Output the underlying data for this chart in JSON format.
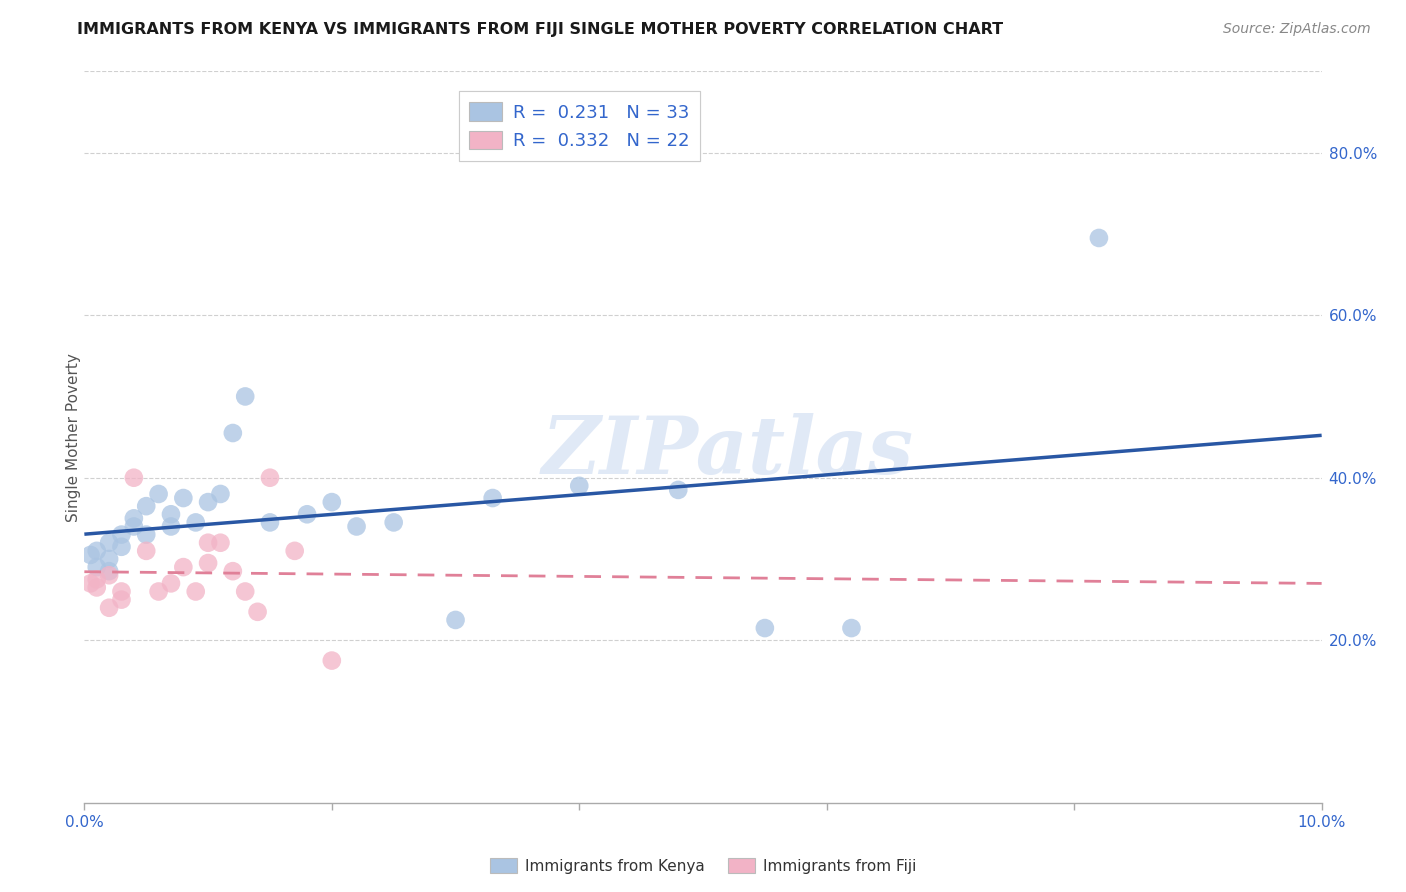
{
  "title": "IMMIGRANTS FROM KENYA VS IMMIGRANTS FROM FIJI SINGLE MOTHER POVERTY CORRELATION CHART",
  "source": "Source: ZipAtlas.com",
  "ylabel": "Single Mother Poverty",
  "xlim": [
    0.0,
    0.1
  ],
  "ylim": [
    0.0,
    0.9
  ],
  "xtick_positions": [
    0.0,
    0.02,
    0.04,
    0.06,
    0.08,
    0.1
  ],
  "xtick_labels": [
    "0.0%",
    "",
    "",
    "",
    "",
    "10.0%"
  ],
  "ytick_positions": [
    0.2,
    0.4,
    0.6,
    0.8
  ],
  "ytick_labels": [
    "20.0%",
    "40.0%",
    "60.0%",
    "80.0%"
  ],
  "kenya_color": "#aac4e2",
  "fiji_color": "#f2b3c6",
  "kenya_line_color": "#2957a4",
  "fiji_line_color": "#e08098",
  "kenya_R": 0.231,
  "kenya_N": 33,
  "fiji_R": 0.332,
  "fiji_N": 22,
  "legend_label_kenya": "Immigrants from Kenya",
  "legend_label_fiji": "Immigrants from Fiji",
  "watermark": "ZIPatlas",
  "background_color": "#ffffff",
  "grid_color": "#d0d0d0",
  "kenya_x": [
    0.0005,
    0.001,
    0.001,
    0.002,
    0.002,
    0.002,
    0.003,
    0.003,
    0.004,
    0.004,
    0.005,
    0.005,
    0.006,
    0.007,
    0.007,
    0.008,
    0.009,
    0.01,
    0.011,
    0.012,
    0.013,
    0.015,
    0.018,
    0.02,
    0.022,
    0.025,
    0.03,
    0.033,
    0.04,
    0.048,
    0.055,
    0.062,
    0.082
  ],
  "kenya_y": [
    0.305,
    0.31,
    0.29,
    0.32,
    0.3,
    0.285,
    0.33,
    0.315,
    0.34,
    0.35,
    0.365,
    0.33,
    0.38,
    0.34,
    0.355,
    0.375,
    0.345,
    0.37,
    0.38,
    0.455,
    0.5,
    0.345,
    0.355,
    0.37,
    0.34,
    0.345,
    0.225,
    0.375,
    0.39,
    0.385,
    0.215,
    0.215,
    0.695
  ],
  "fiji_x": [
    0.0005,
    0.001,
    0.001,
    0.002,
    0.002,
    0.003,
    0.003,
    0.004,
    0.005,
    0.006,
    0.007,
    0.008,
    0.009,
    0.01,
    0.01,
    0.011,
    0.012,
    0.013,
    0.014,
    0.015,
    0.017,
    0.02
  ],
  "fiji_y": [
    0.27,
    0.265,
    0.275,
    0.28,
    0.24,
    0.25,
    0.26,
    0.4,
    0.31,
    0.26,
    0.27,
    0.29,
    0.26,
    0.295,
    0.32,
    0.32,
    0.285,
    0.26,
    0.235,
    0.4,
    0.31,
    0.175
  ]
}
